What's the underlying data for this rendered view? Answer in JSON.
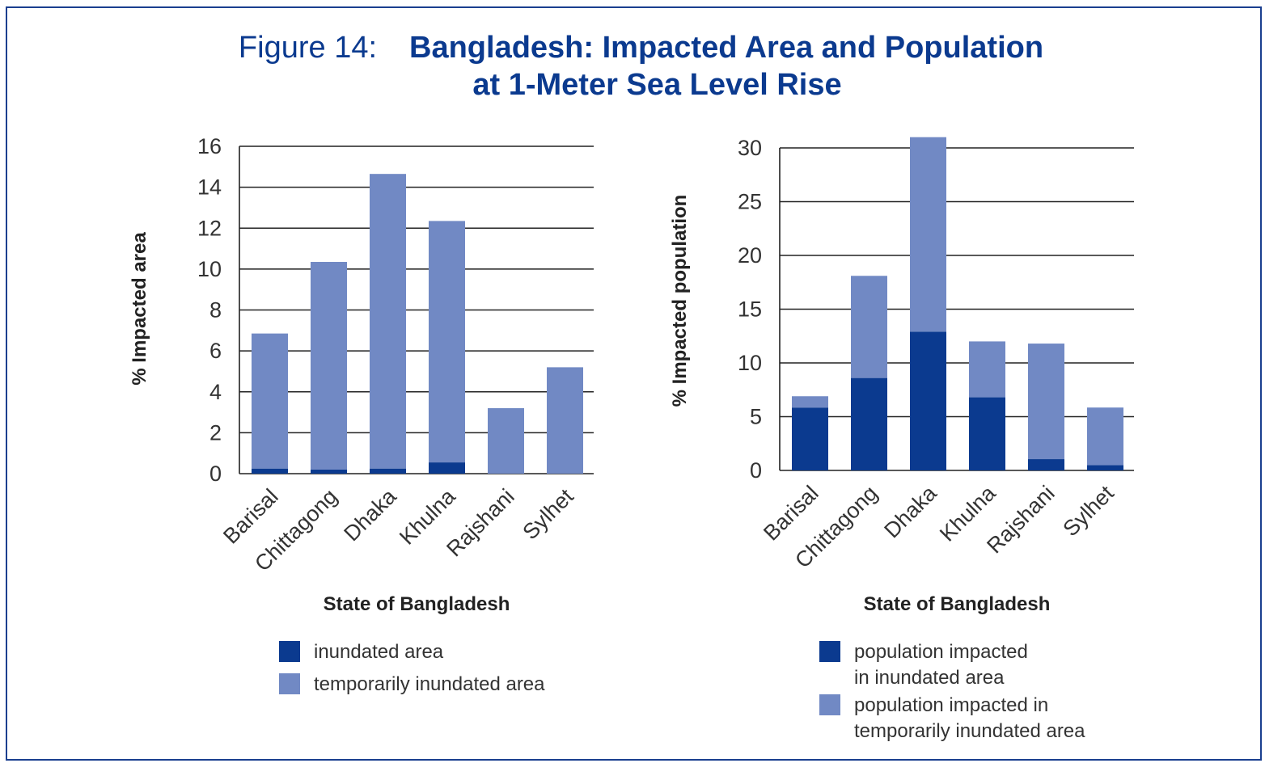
{
  "title": {
    "label": "Figure 14:",
    "line1": "Bangladesh: Impacted Area and Population",
    "line2": "at 1-Meter Sea Level Rise"
  },
  "colors": {
    "inundated": "#0b3a8f",
    "temporary": "#7189c4",
    "title": "#0b3a8f"
  },
  "chart_data": [
    {
      "type": "bar",
      "stacked": true,
      "categories": [
        "Barisal",
        "Chittagong",
        "Dhaka",
        "Khulna",
        "Rajshani",
        "Sylhet"
      ],
      "ylabel": "% Impacted area",
      "xlabel": "State of Bangladesh",
      "ylim": [
        0,
        16
      ],
      "yticks": [
        0,
        2,
        4,
        6,
        8,
        10,
        12,
        14,
        16
      ],
      "grid": true,
      "series": [
        {
          "name": "inundated area",
          "values": [
            0.25,
            0.2,
            0.25,
            0.55,
            0,
            0
          ]
        },
        {
          "name": "temporarily inundated area",
          "values": [
            6.6,
            10.15,
            14.4,
            11.8,
            3.2,
            5.2
          ]
        }
      ]
    },
    {
      "type": "bar",
      "stacked": true,
      "categories": [
        "Barisal",
        "Chittagong",
        "Dhaka",
        "Khulna",
        "Rajshani",
        "Sylhet"
      ],
      "ylabel": "% Impacted population",
      "xlabel": "State of Bangladesh",
      "ylim": [
        0,
        30
      ],
      "yticks": [
        0,
        5,
        10,
        15,
        20,
        25,
        30
      ],
      "grid": true,
      "series": [
        {
          "name": "population impacted in inundated area",
          "values": [
            5.85,
            8.6,
            12.9,
            6.8,
            1.05,
            0.5
          ]
        },
        {
          "name": "population impacted in temporarily inundated area",
          "values": [
            1.05,
            9.5,
            18.1,
            5.2,
            10.75,
            5.35
          ]
        }
      ]
    }
  ]
}
